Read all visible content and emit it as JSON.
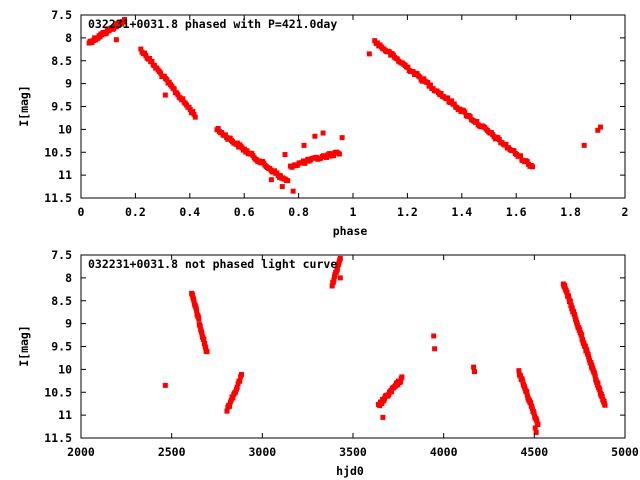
{
  "chart_data": [
    {
      "type": "scatter",
      "title": "032231+0031.8 phased with P=421.0day",
      "xlabel": "phase",
      "ylabel": "I[mag]",
      "xlim": [
        0,
        2
      ],
      "ylim": [
        11.5,
        7.5
      ],
      "y_inverted": true,
      "xticks": [
        0,
        0.2,
        0.4,
        0.6,
        0.8,
        1,
        1.2,
        1.4,
        1.6,
        1.8,
        2
      ],
      "xtick_labels": [
        "0",
        "0.2",
        "0.4",
        "0.6",
        "0.8",
        "1",
        "1.2",
        "1.4",
        "1.6",
        "1.8",
        "2"
      ],
      "yticks": [
        7.5,
        8,
        8.5,
        9,
        9.5,
        10,
        10.5,
        11,
        11.5
      ],
      "ytick_labels": [
        "7.5",
        "8",
        "8.5",
        "9",
        "9.5",
        "10",
        "10.5",
        "11",
        "11.5"
      ],
      "grid": false,
      "marker_color": "#ff0000",
      "segments": [
        {
          "x0": 0.03,
          "x1": 0.16,
          "y0": 8.1,
          "y1": 7.62,
          "n": 40
        },
        {
          "x0": 0.22,
          "x1": 0.42,
          "y0": 8.25,
          "y1": 9.7,
          "n": 45
        },
        {
          "x0": 0.5,
          "x1": 0.76,
          "y0": 10.0,
          "y1": 11.15,
          "n": 60
        },
        {
          "x0": 0.77,
          "x1": 0.95,
          "y0": 10.8,
          "y1": 10.5,
          "n": 35
        },
        {
          "x0": 1.08,
          "x1": 1.66,
          "y0": 8.08,
          "y1": 10.82,
          "n": 120
        }
      ],
      "points": [
        {
          "x": 0.13,
          "y": 8.04
        },
        {
          "x": 0.31,
          "y": 9.25
        },
        {
          "x": 0.75,
          "y": 10.55
        },
        {
          "x": 0.78,
          "y": 11.35
        },
        {
          "x": 0.82,
          "y": 10.35
        },
        {
          "x": 0.86,
          "y": 10.15
        },
        {
          "x": 0.89,
          "y": 10.08
        },
        {
          "x": 0.96,
          "y": 10.18
        },
        {
          "x": 1.06,
          "y": 8.35
        },
        {
          "x": 1.85,
          "y": 10.35
        },
        {
          "x": 1.9,
          "y": 10.02
        },
        {
          "x": 1.91,
          "y": 9.95
        },
        {
          "x": 0.73,
          "y": 11.05
        },
        {
          "x": 0.7,
          "y": 11.1
        },
        {
          "x": 0.74,
          "y": 11.25
        }
      ]
    },
    {
      "type": "scatter",
      "title": "032231+0031.8 not phased light curve",
      "xlabel": "hjd0",
      "ylabel": "I[mag]",
      "xlim": [
        2000,
        5000
      ],
      "ylim": [
        11.5,
        7.5
      ],
      "y_inverted": true,
      "xticks": [
        2000,
        2500,
        3000,
        3500,
        4000,
        4500,
        5000
      ],
      "xtick_labels": [
        "2000",
        "2500",
        "3000",
        "3500",
        "4000",
        "4500",
        "5000"
      ],
      "yticks": [
        7.5,
        8,
        8.5,
        9,
        9.5,
        10,
        10.5,
        11,
        11.5
      ],
      "ytick_labels": [
        "7.5",
        "8",
        "8.5",
        "9",
        "9.5",
        "10",
        "10.5",
        "11",
        "11.5"
      ],
      "grid": false,
      "marker_color": "#ff0000",
      "segments": [
        {
          "x0": 2610,
          "x1": 2695,
          "y0": 8.3,
          "y1": 9.65,
          "n": 35
        },
        {
          "x0": 2805,
          "x1": 2885,
          "y0": 10.9,
          "y1": 10.15,
          "n": 18
        },
        {
          "x0": 3385,
          "x1": 3430,
          "y0": 8.15,
          "y1": 7.6,
          "n": 15
        },
        {
          "x0": 3640,
          "x1": 3770,
          "y0": 10.8,
          "y1": 10.2,
          "n": 35
        },
        {
          "x0": 4415,
          "x1": 4520,
          "y0": 10.05,
          "y1": 11.2,
          "n": 35
        },
        {
          "x0": 4660,
          "x1": 4890,
          "y0": 8.1,
          "y1": 10.8,
          "n": 90
        }
      ],
      "points": [
        {
          "x": 2465,
          "y": 10.35
        },
        {
          "x": 3430,
          "y": 8.0
        },
        {
          "x": 3945,
          "y": 9.27
        },
        {
          "x": 3950,
          "y": 9.55
        },
        {
          "x": 4165,
          "y": 9.95
        },
        {
          "x": 4170,
          "y": 10.05
        },
        {
          "x": 4510,
          "y": 11.38
        },
        {
          "x": 4505,
          "y": 11.28
        },
        {
          "x": 3665,
          "y": 11.05
        }
      ]
    }
  ]
}
